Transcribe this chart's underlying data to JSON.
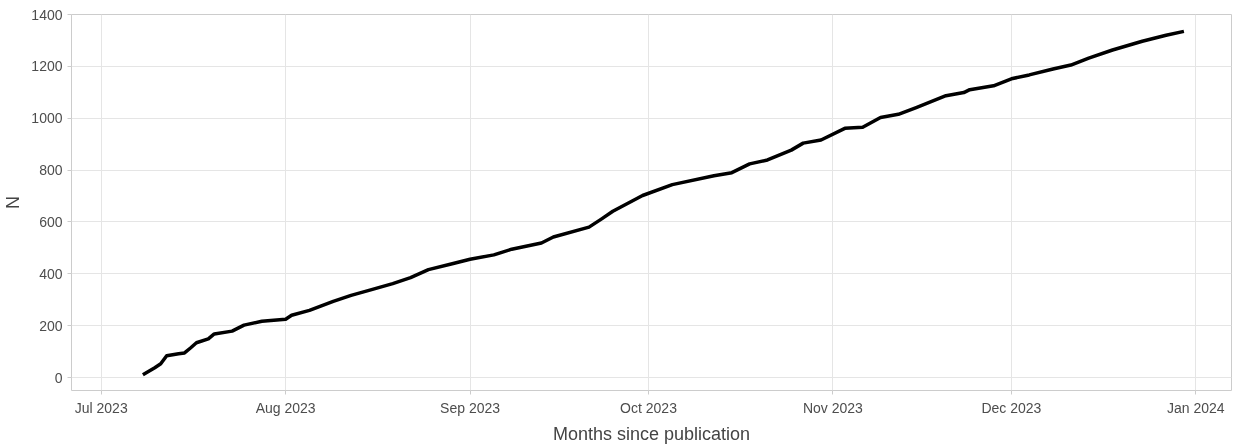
{
  "chart_data": {
    "type": "line",
    "xlabel": "Months since publication",
    "ylabel": "N",
    "x": [
      "2023-07-08",
      "2023-07-10",
      "2023-07-11",
      "2023-07-12",
      "2023-07-14",
      "2023-07-15",
      "2023-07-16",
      "2023-07-17",
      "2023-07-19",
      "2023-07-20",
      "2023-07-23",
      "2023-07-25",
      "2023-07-28",
      "2023-07-30",
      "2023-08-01",
      "2023-08-02",
      "2023-08-05",
      "2023-08-09",
      "2023-08-12",
      "2023-08-15",
      "2023-08-19",
      "2023-08-22",
      "2023-08-25",
      "2023-08-29",
      "2023-09-01",
      "2023-09-05",
      "2023-09-08",
      "2023-09-13",
      "2023-09-15",
      "2023-09-21",
      "2023-09-23",
      "2023-09-25",
      "2023-09-30",
      "2023-10-05",
      "2023-10-12",
      "2023-10-15",
      "2023-10-18",
      "2023-10-21",
      "2023-10-25",
      "2023-10-27",
      "2023-10-30",
      "2023-11-03",
      "2023-11-06",
      "2023-11-09",
      "2023-11-12",
      "2023-11-15",
      "2023-11-20",
      "2023-11-23",
      "2023-11-24",
      "2023-11-28",
      "2023-12-01",
      "2023-12-04",
      "2023-12-08",
      "2023-12-11",
      "2023-12-14",
      "2023-12-18",
      "2023-12-23",
      "2023-12-27",
      "2023-12-30"
    ],
    "series": [
      {
        "color": "#000000",
        "values": [
          11,
          38,
          53,
          84,
          92,
          95,
          114,
          134,
          149,
          168,
          179,
          202,
          217,
          221,
          225,
          240,
          259,
          294,
          317,
          336,
          362,
          385,
          416,
          439,
          456,
          473,
          495,
          519,
          542,
          580,
          610,
          641,
          702,
          744,
          778,
          790,
          824,
          839,
          877,
          904,
          916,
          961,
          965,
          1003,
          1015,
          1041,
          1087,
          1099,
          1110,
          1125,
          1152,
          1167,
          1190,
          1205,
          1232,
          1263,
          1297,
          1320,
          1335
        ]
      }
    ],
    "xlim": [
      "2023-06-26",
      "2024-01-07"
    ],
    "xticks": [
      {
        "value": "2023-07-01",
        "label": "Jul 2023"
      },
      {
        "value": "2023-08-01",
        "label": "Aug 2023"
      },
      {
        "value": "2023-09-01",
        "label": "Sep 2023"
      },
      {
        "value": "2023-10-01",
        "label": "Oct 2023"
      },
      {
        "value": "2023-11-01",
        "label": "Nov 2023"
      },
      {
        "value": "2023-12-01",
        "label": "Dec 2023"
      },
      {
        "value": "2024-01-01",
        "label": "Jan 2024"
      }
    ],
    "ylim": [
      -50,
      1400
    ],
    "yticks": [
      0,
      200,
      400,
      600,
      800,
      1000,
      1200,
      1400
    ],
    "grid": true,
    "line_style": "solid"
  }
}
